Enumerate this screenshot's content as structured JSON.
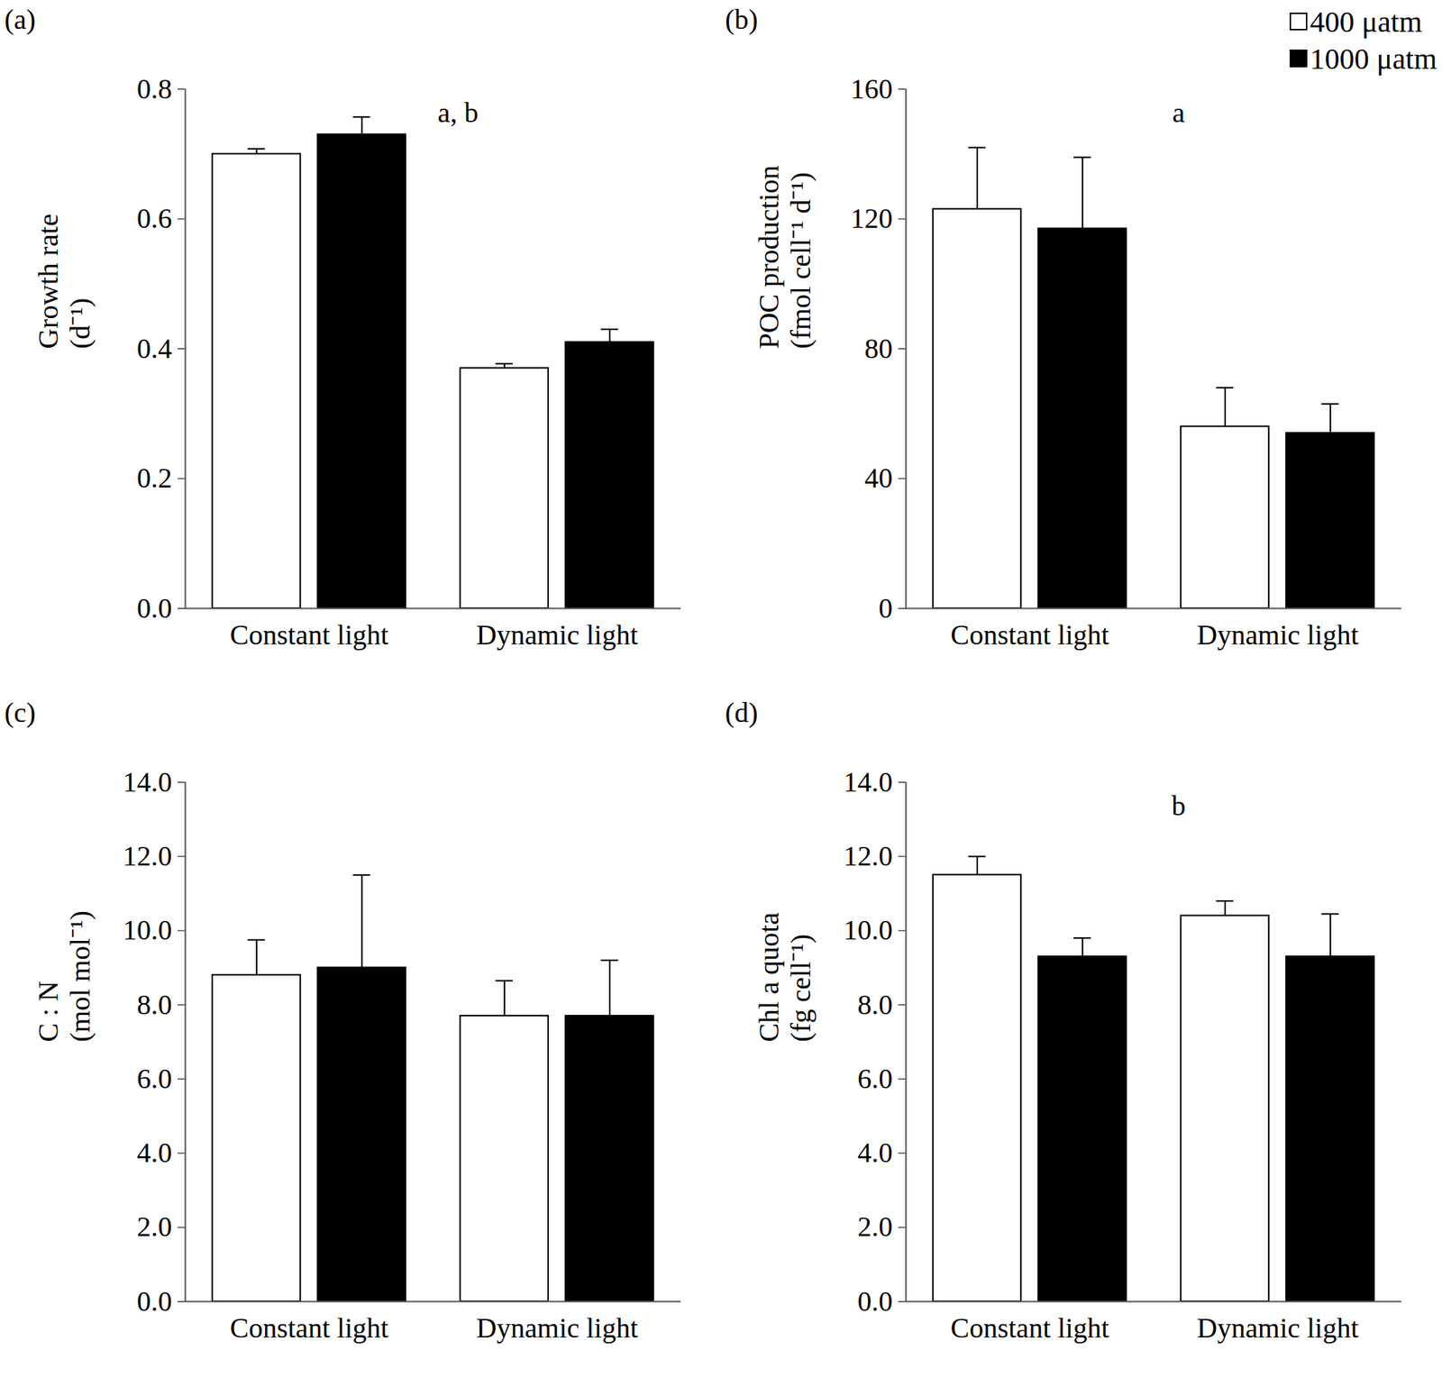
{
  "chart_data": [
    {
      "type": "bar",
      "title": "(a)",
      "y_label": [
        "Growth rate",
        "(d⁻¹)"
      ],
      "categories": [
        "Constant light",
        "Dynamic light"
      ],
      "series": [
        {
          "name": "400 μatm",
          "color": "#ffffff",
          "values": [
            0.7,
            0.37
          ],
          "errors": [
            0.008,
            0.007
          ]
        },
        {
          "name": "1000 μatm",
          "color": "#000000",
          "values": [
            0.73,
            0.41
          ],
          "errors": [
            0.027,
            0.02
          ]
        }
      ],
      "ylim": [
        0,
        0.8
      ],
      "yticks": [
        {
          "value": 0,
          "label": "0.0"
        },
        0.2,
        0.4,
        0.6,
        0.8
      ],
      "annotations": [
        "a, b"
      ]
    },
    {
      "type": "bar",
      "title": "(b)",
      "y_label": [
        "POC production",
        "(fmol cell⁻¹ d⁻¹)"
      ],
      "categories": [
        "Constant light",
        "Dynamic light"
      ],
      "series": [
        {
          "name": "400 μatm",
          "color": "#ffffff",
          "values": [
            123,
            56
          ],
          "errors": [
            19,
            12
          ]
        },
        {
          "name": "1000 μatm",
          "color": "#000000",
          "values": [
            117,
            54
          ],
          "errors": [
            22,
            9
          ]
        }
      ],
      "ylim": [
        0,
        160
      ],
      "yticks": [
        0,
        40,
        80,
        120,
        160
      ],
      "annotations": [
        "a"
      ],
      "legend": "top-right"
    },
    {
      "type": "bar",
      "title": "(c)",
      "y_label": [
        "C : N",
        "(mol mol⁻¹)"
      ],
      "categories": [
        "Constant light",
        "Dynamic light"
      ],
      "series": [
        {
          "name": "400 μatm",
          "color": "#ffffff",
          "values": [
            8.8,
            7.7
          ],
          "errors": [
            0.95,
            0.95
          ]
        },
        {
          "name": "1000 μatm",
          "color": "#000000",
          "values": [
            9.0,
            7.7
          ],
          "errors": [
            2.5,
            1.5
          ]
        }
      ],
      "ylim": [
        0,
        14
      ],
      "yticks": [
        {
          "value": 0,
          "label": "0.0"
        },
        {
          "value": 2,
          "label": "2.0"
        },
        {
          "value": 4,
          "label": "4.0"
        },
        {
          "value": 6,
          "label": "6.0"
        },
        {
          "value": 8,
          "label": "8.0"
        },
        {
          "value": 10,
          "label": "10.0"
        },
        {
          "value": 12,
          "label": "12.0"
        },
        {
          "value": 14,
          "label": "14.0"
        }
      ]
    },
    {
      "type": "bar",
      "title": "(d)",
      "y_label": [
        "Chl a quota",
        "(fg cell⁻¹)"
      ],
      "categories": [
        "Constant light",
        "Dynamic light"
      ],
      "series": [
        {
          "name": "400 μatm",
          "color": "#ffffff",
          "values": [
            11.5,
            10.4
          ],
          "errors": [
            0.5,
            0.4
          ]
        },
        {
          "name": "1000 μatm",
          "color": "#000000",
          "values": [
            9.3,
            9.3
          ],
          "errors": [
            0.5,
            1.15
          ]
        }
      ],
      "ylim": [
        0,
        14
      ],
      "yticks": [
        {
          "value": 0,
          "label": "0.0"
        },
        {
          "value": 2,
          "label": "2.0"
        },
        {
          "value": 4,
          "label": "4.0"
        },
        {
          "value": 6,
          "label": "6.0"
        },
        {
          "value": 8,
          "label": "8.0"
        },
        {
          "value": 10,
          "label": "10.0"
        },
        {
          "value": 12,
          "label": "12.0"
        },
        {
          "value": 14,
          "label": "14.0"
        }
      ],
      "annotations": [
        "b"
      ]
    }
  ]
}
